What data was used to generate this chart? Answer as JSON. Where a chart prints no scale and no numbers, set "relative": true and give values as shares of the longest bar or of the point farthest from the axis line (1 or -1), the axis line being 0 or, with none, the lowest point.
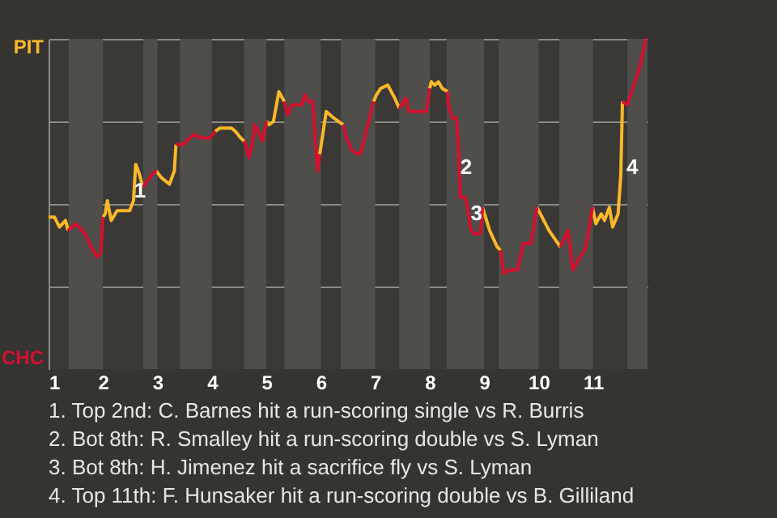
{
  "chart_data": {
    "type": "line",
    "x": [
      1,
      1.11,
      1.2,
      1.31,
      1.36,
      1.5,
      1.67,
      1.78,
      1.89,
      1.96,
      2,
      2.04,
      2.08,
      2.15,
      2.26,
      2.49,
      2.56,
      2.6,
      2.67,
      2.73,
      2.9,
      2.98,
      3.07,
      3.22,
      3.31,
      3.34,
      3.47,
      3.66,
      3.81,
      3.96,
      4.06,
      4.15,
      4.36,
      4.43,
      4.53,
      4.59,
      4.62,
      4.68,
      4.74,
      4.79,
      4.85,
      4.93,
      5,
      5.05,
      5.13,
      5.23,
      5.33,
      5.39,
      5.47,
      5.65,
      5.71,
      5.78,
      5.85,
      5.88,
      5.94,
      5.98,
      6.1,
      6.24,
      6.41,
      6.47,
      6.58,
      6.72,
      6.82,
      6.97,
      7.02,
      7.1,
      7.23,
      7.36,
      7.44,
      7.49,
      7.56,
      7.62,
      7.94,
      8,
      8.03,
      8.09,
      8.16,
      8.23,
      8.33,
      8.34,
      8.42,
      8.49,
      8.53,
      8.56,
      8.65,
      8.69,
      8.76,
      8.81,
      8.93,
      8.97,
      9.1,
      9.24,
      9.3,
      9.36,
      9.47,
      9.61,
      9.72,
      9.86,
      9.97,
      10.19,
      10.4,
      10.54,
      10.63,
      10.87,
      10.99,
      11.05,
      11.15,
      11.21,
      11.3,
      11.36,
      11.46,
      11.51,
      11.54,
      11.63,
      11.73,
      11.85,
      11.97
    ],
    "series": [
      {
        "name": "PIT",
        "color": "#fdb827",
        "values": [
          0.46,
          0.46,
          0.43,
          0.45,
          0.42,
          null,
          null,
          null,
          null,
          null,
          0.46,
          0.47,
          0.51,
          0.45,
          0.48,
          0.48,
          0.51,
          0.62,
          0.59,
          0.55,
          null,
          0.6,
          0.58,
          0.56,
          0.6,
          0.68,
          null,
          null,
          null,
          null,
          0.72,
          0.73,
          0.73,
          0.72,
          0.7,
          0.69,
          null,
          null,
          null,
          null,
          null,
          null,
          0.75,
          0.74,
          0.75,
          0.84,
          0.81,
          null,
          null,
          null,
          null,
          null,
          null,
          null,
          null,
          0.65,
          0.78,
          0.76,
          0.74,
          null,
          null,
          null,
          null,
          0.81,
          0.83,
          0.85,
          0.86,
          0.82,
          0.79,
          null,
          null,
          null,
          null,
          0.85,
          0.87,
          0.86,
          0.87,
          0.85,
          0.84,
          null,
          null,
          null,
          null,
          null,
          null,
          null,
          null,
          null,
          null,
          0.49,
          0.42,
          0.37,
          0.36,
          null,
          null,
          null,
          null,
          null,
          0.49,
          0.42,
          0.37,
          null,
          null,
          null,
          0.49,
          0.44,
          0.47,
          0.45,
          0.49,
          0.43,
          0.47,
          0.59,
          0.81,
          null,
          null,
          null,
          null
        ]
      },
      {
        "name": "CHC",
        "color": "#d5102f",
        "values": [
          null,
          null,
          null,
          null,
          0.42,
          0.44,
          0.41,
          0.37,
          0.34,
          0.35,
          0.46,
          null,
          null,
          null,
          null,
          null,
          null,
          null,
          null,
          0.55,
          0.59,
          0.6,
          null,
          null,
          null,
          0.68,
          0.68,
          0.71,
          0.7,
          0.7,
          0.72,
          null,
          null,
          null,
          null,
          0.69,
          0.68,
          0.64,
          0.68,
          0.74,
          0.72,
          0.69,
          0.75,
          null,
          null,
          null,
          0.81,
          0.77,
          0.8,
          0.8,
          0.83,
          0.81,
          0.81,
          0.74,
          0.6,
          0.65,
          null,
          null,
          0.74,
          0.7,
          0.66,
          0.65,
          0.71,
          0.81,
          null,
          null,
          null,
          null,
          0.79,
          0.8,
          0.82,
          0.78,
          0.78,
          0.85,
          null,
          null,
          null,
          null,
          0.84,
          0.8,
          0.76,
          0.76,
          0.67,
          0.52,
          0.52,
          0.49,
          0.42,
          0.41,
          0.41,
          0.49,
          null,
          null,
          0.36,
          0.29,
          0.3,
          0.3,
          0.38,
          0.38,
          0.49,
          null,
          0.37,
          0.42,
          0.3,
          0.37,
          0.49,
          null,
          null,
          null,
          null,
          null,
          null,
          null,
          0.81,
          0.8,
          0.85,
          0.91,
          1
        ]
      }
    ],
    "xlim": [
      1,
      12
    ],
    "xticks": [
      1,
      2,
      3,
      4,
      5,
      6,
      7,
      8,
      9,
      10,
      11
    ],
    "relative": true,
    "grid": "y",
    "marker": "none",
    "line_style": "solid",
    "bands": [
      {
        "axis": "x",
        "from": 1.37,
        "to": 2,
        "color": "#4f4e4b"
      },
      {
        "axis": "x",
        "from": 2.74,
        "to": 3,
        "color": "#4f4e4b"
      },
      {
        "axis": "x",
        "from": 3.41,
        "to": 4,
        "color": "#4f4e4b"
      },
      {
        "axis": "x",
        "from": 4.59,
        "to": 5,
        "color": "#4f4e4b"
      },
      {
        "axis": "x",
        "from": 5.33,
        "to": 6,
        "color": "#4f4e4b"
      },
      {
        "axis": "x",
        "from": 6.37,
        "to": 7,
        "color": "#4f4e4b"
      },
      {
        "axis": "x",
        "from": 7.44,
        "to": 8,
        "color": "#4f4e4b"
      },
      {
        "axis": "x",
        "from": 8.31,
        "to": 9,
        "color": "#4f4e4b"
      },
      {
        "axis": "x",
        "from": 9.27,
        "to": 10,
        "color": "#4f4e4b"
      },
      {
        "axis": "x",
        "from": 10.38,
        "to": 11,
        "color": "#4f4e4b"
      },
      {
        "axis": "x",
        "from": 11.63,
        "to": 12,
        "color": "#4f4e4b"
      }
    ],
    "annotations": [
      {
        "text": "1",
        "x": 2.68,
        "y": 0.54
      },
      {
        "text": "2",
        "x": 8.67,
        "y": 0.61
      },
      {
        "text": "3",
        "x": 8.86,
        "y": 0.47
      },
      {
        "text": "4",
        "x": 11.72,
        "y": 0.61
      },
      "1. Top 2nd: C. Barnes hit a run-scoring single vs R. Burris",
      "2. Bot 8th: R. Smalley hit a run-scoring double vs S. Lyman",
      "3. Bot 8th: H. Jimenez hit a sacrifice fly vs S. Lyman",
      "4. Top 11th: F. Hunsaker hit a run-scoring double vs B. Gilliland"
    ]
  }
}
